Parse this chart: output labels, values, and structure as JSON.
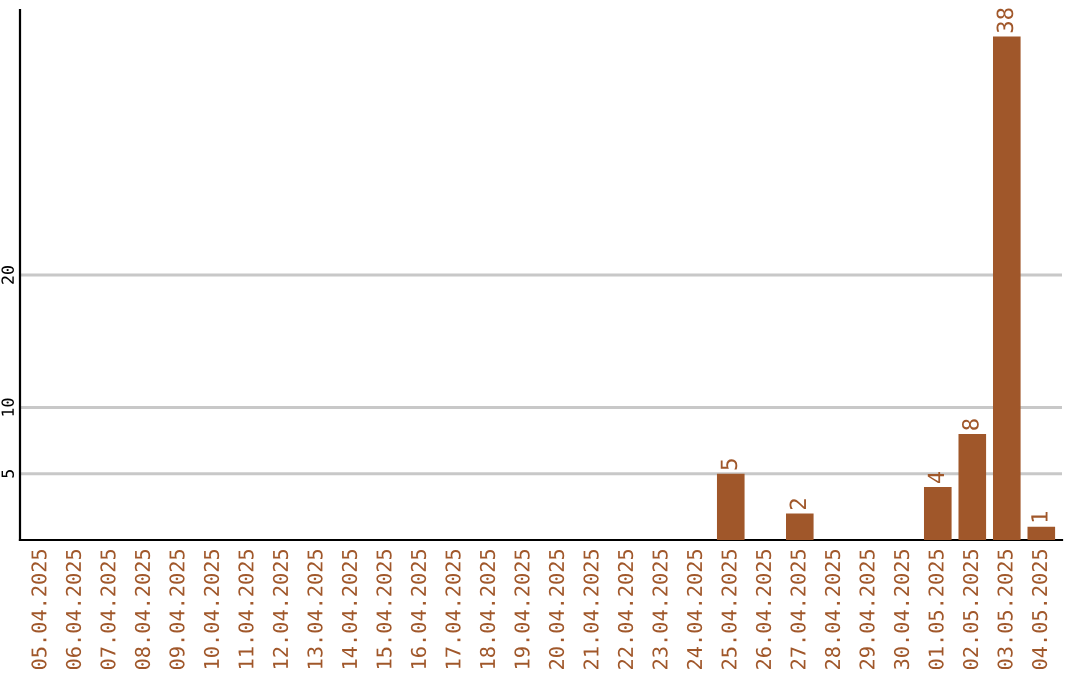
{
  "chart_data": {
    "type": "bar",
    "categories": [
      "05.04.2025",
      "06.04.2025",
      "07.04.2025",
      "08.04.2025",
      "09.04.2025",
      "10.04.2025",
      "11.04.2025",
      "12.04.2025",
      "13.04.2025",
      "14.04.2025",
      "15.04.2025",
      "16.04.2025",
      "17.04.2025",
      "18.04.2025",
      "19.04.2025",
      "20.04.2025",
      "21.04.2025",
      "22.04.2025",
      "23.04.2025",
      "24.04.2025",
      "25.04.2025",
      "26.04.2025",
      "27.04.2025",
      "28.04.2025",
      "29.04.2025",
      "30.04.2025",
      "01.05.2025",
      "02.05.2025",
      "03.05.2025",
      "04.05.2025"
    ],
    "values": [
      0,
      0,
      0,
      0,
      0,
      0,
      0,
      0,
      0,
      0,
      0,
      0,
      0,
      0,
      0,
      0,
      0,
      0,
      0,
      0,
      5,
      0,
      2,
      0,
      0,
      0,
      4,
      8,
      38,
      1
    ],
    "value_labels": [
      null,
      null,
      null,
      null,
      null,
      null,
      null,
      null,
      null,
      null,
      null,
      null,
      null,
      null,
      null,
      null,
      null,
      null,
      null,
      null,
      "5",
      null,
      "2",
      null,
      null,
      null,
      "4",
      "8",
      "38",
      "1"
    ],
    "color": "#a0572a",
    "ylim": [
      0,
      40
    ],
    "yticks": [
      5,
      10,
      20
    ],
    "grid": "y",
    "legend": false
  }
}
